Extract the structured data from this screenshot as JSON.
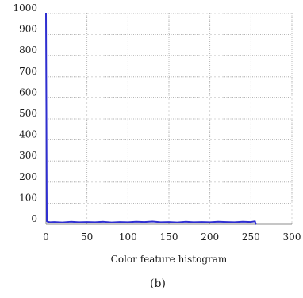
{
  "chart_data": {
    "type": "line",
    "title": "",
    "xlabel": "Color feature histogram",
    "ylabel": "",
    "caption": "(b)",
    "xlim": [
      0,
      300
    ],
    "ylim": [
      0,
      1000
    ],
    "xticks": [
      0,
      50,
      100,
      150,
      200,
      250,
      300
    ],
    "yticks": [
      0,
      100,
      200,
      300,
      400,
      500,
      600,
      700,
      800,
      900,
      1000
    ],
    "grid": true,
    "legend": "none",
    "colors": {
      "series": "#2f2fd0",
      "grid": "#9a9a9a",
      "axis": "#8c8c8c",
      "text": "#1a1a1a"
    },
    "series": [
      {
        "x": [
          0,
          1,
          2,
          5,
          10,
          20,
          30,
          40,
          50,
          60,
          70,
          80,
          90,
          100,
          110,
          120,
          130,
          140,
          150,
          160,
          170,
          180,
          190,
          200,
          210,
          220,
          230,
          240,
          250,
          255,
          256
        ],
        "y": [
          1000,
          15,
          12,
          10,
          11,
          9,
          12,
          10,
          11,
          10,
          12,
          9,
          11,
          10,
          12,
          11,
          13,
          10,
          11,
          9,
          12,
          10,
          11,
          10,
          12,
          11,
          10,
          12,
          11,
          14,
          0
        ]
      }
    ]
  }
}
